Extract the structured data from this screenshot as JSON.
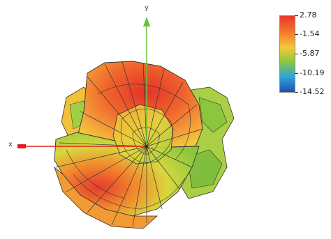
{
  "axes": {
    "x_label": "x",
    "y_label": "y"
  },
  "colorbar": {
    "ticks": [
      "2.78",
      "-1.54",
      "-5.87",
      "-10.19",
      "-14.52"
    ],
    "colors": [
      "#e8342a",
      "#f47b2a",
      "#f2c93a",
      "#8cc63f",
      "#2fa4d9",
      "#1f4fb5"
    ]
  },
  "colors": {
    "x_axis": "#e02020",
    "y_axis": "#6cbf3b",
    "mesh_line": "#333333"
  }
}
